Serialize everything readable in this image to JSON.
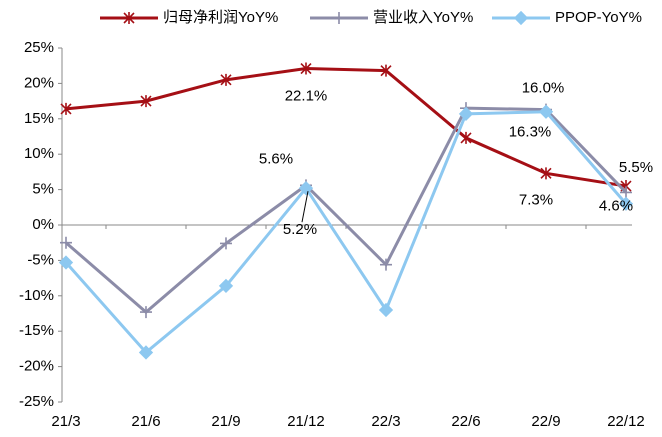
{
  "chart_data": {
    "type": "line",
    "categories": [
      "21/3",
      "21/6",
      "21/9",
      "21/12",
      "22/3",
      "22/6",
      "22/9",
      "22/12"
    ],
    "series": [
      {
        "name": "归母净利润YoY%",
        "color": "#a50f15",
        "marker": "star",
        "values": [
          16.4,
          17.5,
          20.5,
          22.1,
          21.8,
          12.3,
          7.3,
          5.5
        ],
        "value_labels": [
          null,
          null,
          null,
          "22.1%",
          null,
          null,
          "7.3%",
          "5.5%"
        ]
      },
      {
        "name": "营业收入YoY%",
        "color": "#8c8ca8",
        "marker": "plus",
        "values": [
          -2.5,
          -12.3,
          -2.6,
          5.6,
          -5.6,
          16.5,
          16.3,
          4.6
        ],
        "value_labels": [
          null,
          null,
          null,
          "5.6%",
          null,
          null,
          "16.3%",
          "4.6%"
        ]
      },
      {
        "name": "PPOP-YoY%",
        "color": "#8dc8f0",
        "marker": "diamond",
        "values": [
          -5.3,
          -18.0,
          -8.6,
          5.2,
          -12.0,
          15.7,
          16.0,
          3.0
        ],
        "value_labels": [
          null,
          null,
          null,
          "5.2%",
          null,
          null,
          "16.0%",
          null
        ]
      }
    ],
    "ylim": [
      -25,
      25
    ],
    "yticks": [
      {
        "value": -25,
        "label": "-25%"
      },
      {
        "value": -20,
        "label": "-20%"
      },
      {
        "value": -15,
        "label": "-15%"
      },
      {
        "value": -10,
        "label": "-10%"
      },
      {
        "value": -5,
        "label": "-5%"
      },
      {
        "value": 0,
        "label": "0%"
      },
      {
        "value": 5,
        "label": "5%"
      },
      {
        "value": 10,
        "label": "10%"
      },
      {
        "value": 15,
        "label": "15%"
      },
      {
        "value": 20,
        "label": "20%"
      },
      {
        "value": 25,
        "label": "25%"
      }
    ],
    "grid": false
  }
}
